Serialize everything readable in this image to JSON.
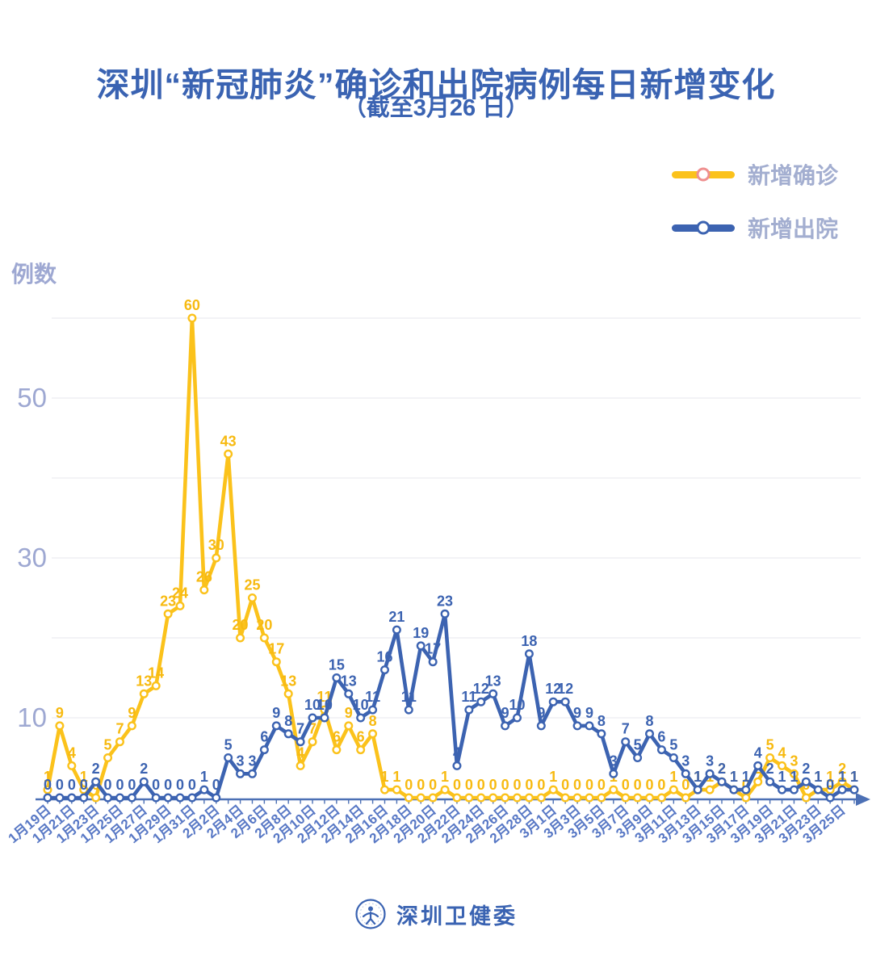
{
  "header": {
    "title": "深圳“新冠肺炎”确诊和出院病例每日新增变化",
    "subtitle": "（截至3月26 日）"
  },
  "legend": {
    "items": [
      {
        "label": "新增确诊",
        "color": "#FBC21B",
        "marker_border": "#EF8F8F"
      },
      {
        "label": "新增出院",
        "color": "#3C63B1",
        "marker_border": "#3C63B1"
      }
    ]
  },
  "colors": {
    "title": "#3A63B2",
    "grid": "#ECECF1",
    "axis": "#4C70B5",
    "x_tick_label": "#5878C5",
    "y_tick_label": "#9EA8D2",
    "confirmed": "#FBC21B",
    "confirmed_label": "#F7BA11",
    "discharged": "#3C63B1",
    "background": "#FFFFFF"
  },
  "footer": {
    "brand": "深圳卫健委",
    "logo": "shenzhen-health-commission-emblem"
  },
  "chart_data": {
    "type": "line",
    "title": "深圳“新冠肺炎”确诊和出院病例每日新增变化",
    "subtitle": "（截至3月26 日）",
    "ylabel": "例数",
    "xlabel": "",
    "ylim": [
      0,
      62
    ],
    "grid": "horizontal-only",
    "grid_values": [
      10,
      20,
      30,
      40,
      50,
      60
    ],
    "y_tick_labels": [
      10,
      30,
      50
    ],
    "x_tick_every": 2,
    "legend_position": "top-right",
    "point_labels": "all",
    "categories": [
      "1月19日",
      "1月20日",
      "1月21日",
      "1月22日",
      "1月23日",
      "1月24日",
      "1月25日",
      "1月26日",
      "1月27日",
      "1月28日",
      "1月29日",
      "1月30日",
      "1月31日",
      "2月1日",
      "2月2日",
      "2月3日",
      "2月4日",
      "2月5日",
      "2月6日",
      "2月7日",
      "2月8日",
      "2月9日",
      "2月10日",
      "2月11日",
      "2月12日",
      "2月13日",
      "2月14日",
      "2月15日",
      "2月16日",
      "2月17日",
      "2月18日",
      "2月19日",
      "2月20日",
      "2月21日",
      "2月22日",
      "2月23日",
      "2月24日",
      "2月25日",
      "2月26日",
      "2月27日",
      "2月28日",
      "2月29日",
      "3月1日",
      "3月2日",
      "3月3日",
      "3月4日",
      "3月5日",
      "3月6日",
      "3月7日",
      "3月8日",
      "3月9日",
      "3月10日",
      "3月11日",
      "3月12日",
      "3月13日",
      "3月14日",
      "3月15日",
      "3月16日",
      "3月17日",
      "3月18日",
      "3月19日",
      "3月20日",
      "3月21日",
      "3月22日",
      "3月23日",
      "3月24日",
      "3月25日",
      "3月26日"
    ],
    "series": [
      {
        "name": "新增确诊",
        "color": "#FBC21B",
        "label_color": "#F7BA11",
        "values": [
          1,
          9,
          4,
          1,
          0,
          5,
          7,
          9,
          13,
          14,
          23,
          24,
          60,
          26,
          30,
          43,
          20,
          25,
          20,
          17,
          13,
          4,
          7,
          11,
          6,
          9,
          6,
          8,
          1,
          1,
          0,
          0,
          0,
          1,
          0,
          0,
          0,
          0,
          0,
          0,
          0,
          0,
          1,
          0,
          0,
          0,
          0,
          1,
          0,
          0,
          0,
          0,
          1,
          0,
          1,
          1,
          2,
          1,
          0,
          2,
          5,
          4,
          3,
          0,
          1,
          1,
          2,
          1
        ]
      },
      {
        "name": "新增出院",
        "color": "#3C63B1",
        "label_color": "#3C63B1",
        "values": [
          0,
          0,
          0,
          0,
          2,
          0,
          0,
          0,
          2,
          0,
          0,
          0,
          0,
          1,
          0,
          5,
          3,
          3,
          6,
          9,
          8,
          7,
          10,
          10,
          15,
          13,
          10,
          11,
          16,
          21,
          11,
          19,
          17,
          23,
          4,
          11,
          12,
          13,
          9,
          10,
          18,
          9,
          12,
          12,
          9,
          9,
          8,
          3,
          7,
          5,
          8,
          6,
          5,
          3,
          1,
          3,
          2,
          1,
          1,
          4,
          2,
          1,
          1,
          2,
          1,
          0,
          1,
          1
        ]
      }
    ]
  }
}
